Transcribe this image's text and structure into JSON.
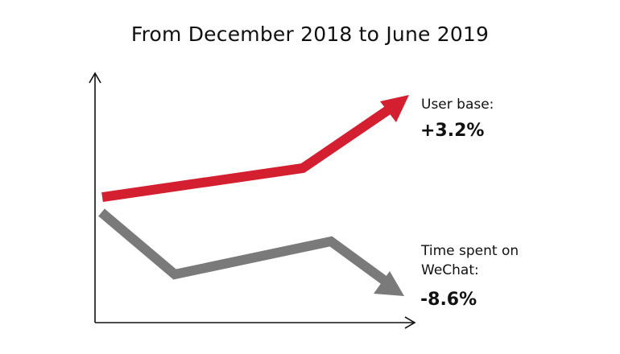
{
  "title": "From December 2018 to June 2019",
  "colors": {
    "user_base": "#d31f2f",
    "time_spent": "#7a7a7a",
    "axis": "#111111"
  },
  "annotations": {
    "user_base": {
      "label": "User base:",
      "value": "+3.2%"
    },
    "time_spent": {
      "label": "Time spent on WeChat:",
      "value": "-8.6%"
    }
  }
}
